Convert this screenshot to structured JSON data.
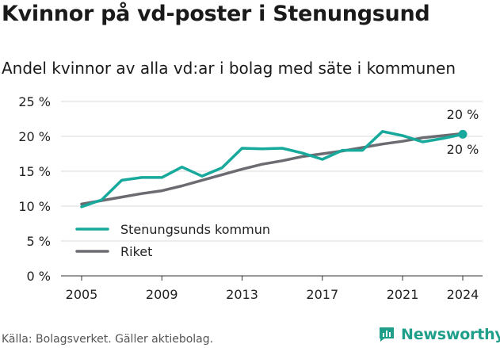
{
  "title": "Kvinnor på vd-poster i Stenungsund",
  "subtitle": "Andel kvinnor av alla vd:ar i bolag med säte i kommunen",
  "footer": "Källa: Bolagsverket. Gäller aktiebolag.",
  "brand": "Newsworthy",
  "colors": {
    "accent": "#17a99b",
    "national": "#6b6b72",
    "grid": "#d9d9d9",
    "brand": "#1f9f8a"
  },
  "chart_data": {
    "type": "line",
    "x": [
      2005,
      2006,
      2007,
      2008,
      2009,
      2010,
      2011,
      2012,
      2013,
      2014,
      2015,
      2016,
      2017,
      2018,
      2019,
      2020,
      2021,
      2022,
      2023,
      2024
    ],
    "xticks": [
      "2005",
      "2009",
      "2013",
      "2017",
      "2021",
      "2024"
    ],
    "yticks": [
      "0 %",
      "5 %",
      "10 %",
      "15 %",
      "20 %",
      "25 %"
    ],
    "ylim": [
      0,
      25
    ],
    "series": [
      {
        "name": "Stenungsunds kommun",
        "color": "#17a99b",
        "values": [
          9.9,
          10.9,
          13.7,
          14.1,
          14.1,
          15.6,
          14.3,
          15.5,
          18.3,
          18.2,
          18.3,
          17.6,
          16.7,
          18.0,
          18.0,
          20.7,
          20.1,
          19.2,
          19.7,
          20.3
        ]
      },
      {
        "name": "Riket",
        "color": "#6b6b72",
        "values": [
          10.3,
          10.8,
          11.3,
          11.8,
          12.2,
          12.9,
          13.7,
          14.5,
          15.3,
          16.0,
          16.5,
          17.1,
          17.5,
          17.9,
          18.4,
          18.9,
          19.3,
          19.8,
          20.1,
          20.4
        ]
      }
    ],
    "end_labels": [
      "20 %",
      "20 %"
    ],
    "grid": true,
    "legend": "bottom-left"
  }
}
